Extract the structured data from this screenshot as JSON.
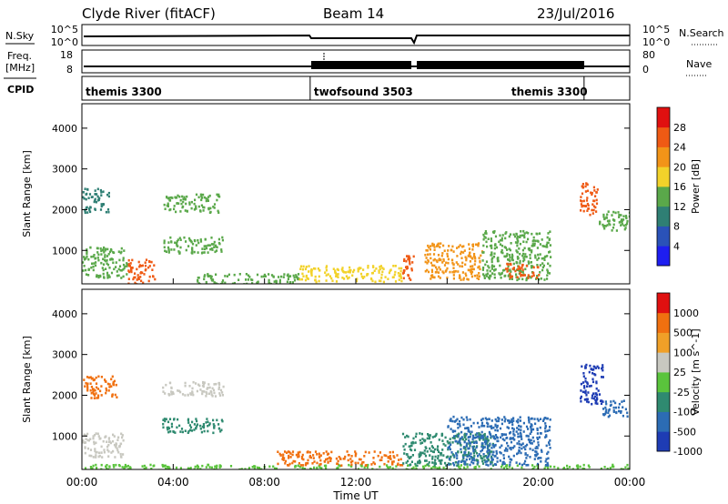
{
  "header": {
    "station": "Clyde River (fitACF)",
    "beam": "Beam 14",
    "date": "23/Jul/2016"
  },
  "top_panels": {
    "nsky_label": "N.Sky",
    "nsky_ticks": [
      "10^5",
      "10^0"
    ],
    "nsearch_label": "N.Search",
    "nsearch_ticks": [
      "10^5",
      "10^0"
    ],
    "freq_label": "Freq.",
    "freq_unit": "[MHz]",
    "freq_ticks": [
      "18",
      "8"
    ],
    "nave_label": "Nave",
    "nave_ticks": [
      "80",
      "0"
    ],
    "cpid_label": "CPID",
    "cpid_segments": [
      {
        "name": "themis 3300",
        "start_h": 0,
        "end_h": 10
      },
      {
        "name": "twofsound 3503",
        "start_h": 10,
        "end_h": 22
      },
      {
        "name": "themis 3300",
        "start_h": 22,
        "end_h": 24
      }
    ]
  },
  "x_axis": {
    "label": "Time UT",
    "ticks": [
      "00:00",
      "04:00",
      "08:00",
      "12:00",
      "16:00",
      "20:00",
      "00:00"
    ],
    "range_h": [
      0,
      24
    ]
  },
  "chart_data": [
    {
      "type": "heatmap",
      "quantity": "Power",
      "ylabel": "Slant Range [km]",
      "ylim": [
        180,
        4600
      ],
      "yticks": [
        "1000",
        "2000",
        "3000",
        "4000"
      ],
      "colorbar": {
        "label": "Power [dB]",
        "ticks": [
          "4",
          "8",
          "12",
          "16",
          "20",
          "24",
          "28"
        ],
        "range": [
          0,
          32
        ],
        "colors": [
          "#1e1ef0",
          "#2a52b8",
          "#2f7f74",
          "#5aa84a",
          "#f2d22a",
          "#f29418",
          "#ef5a14",
          "#e01010"
        ]
      },
      "regions": [
        {
          "t0": 0.0,
          "t1": 1.2,
          "r0": 1950,
          "r1": 2550,
          "level": 10
        },
        {
          "t0": 0.0,
          "t1": 2.0,
          "r0": 350,
          "r1": 1100,
          "level": 12
        },
        {
          "t0": 2.0,
          "t1": 3.2,
          "r0": 200,
          "r1": 800,
          "level": 26
        },
        {
          "t0": 3.5,
          "t1": 6.0,
          "r0": 1950,
          "r1": 2400,
          "level": 14
        },
        {
          "t0": 3.5,
          "t1": 6.2,
          "r0": 950,
          "r1": 1350,
          "level": 12
        },
        {
          "t0": 5.0,
          "t1": 9.5,
          "r0": 180,
          "r1": 450,
          "level": 14
        },
        {
          "t0": 9.5,
          "t1": 14.0,
          "r0": 250,
          "r1": 650,
          "level": 18
        },
        {
          "t0": 14.0,
          "t1": 14.5,
          "r0": 300,
          "r1": 900,
          "level": 24
        },
        {
          "t0": 15.0,
          "t1": 17.5,
          "r0": 300,
          "r1": 1200,
          "level": 20
        },
        {
          "t0": 17.5,
          "t1": 20.5,
          "r0": 300,
          "r1": 1500,
          "level": 14
        },
        {
          "t0": 18.5,
          "t1": 20.0,
          "r0": 350,
          "r1": 700,
          "level": 24
        },
        {
          "t0": 21.8,
          "t1": 22.6,
          "r0": 1900,
          "r1": 2700,
          "level": 24
        },
        {
          "t0": 22.6,
          "t1": 24.0,
          "r0": 1500,
          "r1": 2000,
          "level": 12
        }
      ]
    },
    {
      "type": "heatmap",
      "quantity": "Velocity",
      "ylabel": "Slant Range [km]",
      "ylim": [
        180,
        4600
      ],
      "yticks": [
        "1000",
        "2000",
        "3000",
        "4000"
      ],
      "colorbar": {
        "label": "Velocity [m s^-1]",
        "ticks": [
          "1000",
          "500",
          "100",
          "25",
          "-25",
          "-100",
          "-500",
          "-1000"
        ],
        "colors": [
          "#1e3cb4",
          "#2c6cb4",
          "#2f8a70",
          "#5ac43c",
          "#c8c8c0",
          "#f0a028",
          "#f07010",
          "#e01010"
        ]
      },
      "regions": [
        {
          "t0": 0.0,
          "t1": 1.5,
          "r0": 1950,
          "r1": 2500,
          "color_index": 6
        },
        {
          "t0": 0.0,
          "t1": 1.8,
          "r0": 500,
          "r1": 1100,
          "color_index": 4
        },
        {
          "t0": 0.0,
          "t1": 24.0,
          "r0": 180,
          "r1": 320,
          "color_index": 3
        },
        {
          "t0": 3.5,
          "t1": 6.2,
          "r0": 2000,
          "r1": 2350,
          "color_index": 4
        },
        {
          "t0": 3.5,
          "t1": 6.2,
          "r0": 1100,
          "r1": 1450,
          "color_index": 2
        },
        {
          "t0": 8.5,
          "t1": 14.0,
          "r0": 300,
          "r1": 650,
          "color_index": 6
        },
        {
          "t0": 14.0,
          "t1": 18.0,
          "r0": 300,
          "r1": 1100,
          "color_index": 2
        },
        {
          "t0": 16.0,
          "t1": 20.5,
          "r0": 300,
          "r1": 1500,
          "color_index": 1
        },
        {
          "t0": 21.8,
          "t1": 22.8,
          "r0": 1800,
          "r1": 2800,
          "color_index": 0
        },
        {
          "t0": 22.8,
          "t1": 24.0,
          "r0": 1500,
          "r1": 1900,
          "color_index": 1
        }
      ]
    }
  ]
}
